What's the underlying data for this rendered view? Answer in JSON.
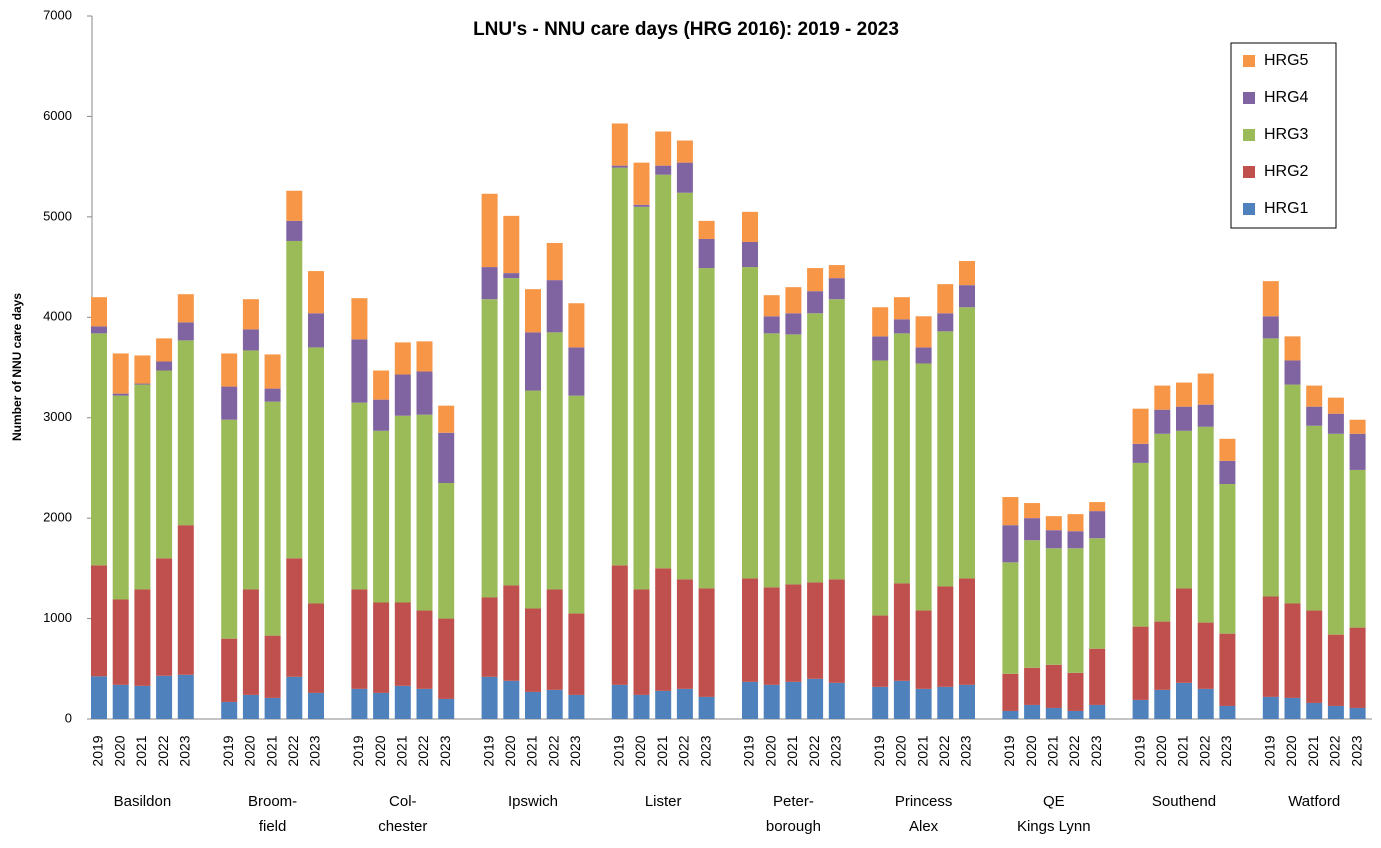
{
  "chart_data": {
    "type": "stacked_bar",
    "title": "LNU's - NNU care days (HRG 2016): 2019 - 2023",
    "y_label": "Number of NNU care days",
    "ylim": [
      0,
      7000
    ],
    "yticks": [
      0,
      1000,
      2000,
      3000,
      4000,
      5000,
      6000,
      7000
    ],
    "legend": "top-right",
    "groups": [
      [
        "Basildon"
      ],
      [
        "Broom-",
        "field"
      ],
      [
        "Col-",
        "chester"
      ],
      [
        "Ipswich"
      ],
      [
        "Lister"
      ],
      [
        "Peter-",
        "borough"
      ],
      [
        "Princess",
        "Alex"
      ],
      [
        "QE",
        "Kings Lynn"
      ],
      [
        "Southend"
      ],
      [
        "Watford"
      ]
    ],
    "categories": [
      "2019",
      "2020",
      "2021",
      "2022",
      "2023",
      "2019",
      "2020",
      "2021",
      "2022",
      "2023",
      "2019",
      "2020",
      "2021",
      "2022",
      "2023",
      "2019",
      "2020",
      "2021",
      "2022",
      "2023",
      "2019",
      "2020",
      "2021",
      "2022",
      "2023",
      "2019",
      "2020",
      "2021",
      "2022",
      "2023",
      "2019",
      "2020",
      "2021",
      "2022",
      "2023",
      "2019",
      "2020",
      "2021",
      "2022",
      "2023",
      "2019",
      "2020",
      "2021",
      "2022",
      "2023",
      "2019",
      "2020",
      "2021",
      "2022",
      "2023"
    ],
    "series": [
      {
        "name": "HRG1",
        "color": "#4f81bd",
        "values": [
          425,
          340,
          330,
          430,
          440,
          170,
          240,
          210,
          420,
          260,
          300,
          260,
          330,
          300,
          200,
          420,
          380,
          270,
          290,
          240,
          340,
          240,
          280,
          300,
          220,
          370,
          340,
          370,
          400,
          360,
          320,
          380,
          300,
          320,
          340,
          80,
          140,
          110,
          80,
          140,
          190,
          290,
          360,
          300,
          130,
          220,
          210,
          160,
          130,
          110
        ]
      },
      {
        "name": "HRG2",
        "color": "#c0504d",
        "values": [
          1105,
          850,
          960,
          1170,
          1490,
          630,
          1050,
          620,
          1180,
          890,
          990,
          900,
          830,
          780,
          800,
          790,
          950,
          830,
          1000,
          810,
          1190,
          1050,
          1220,
          1090,
          1080,
          1030,
          970,
          970,
          960,
          1030,
          710,
          970,
          780,
          1000,
          1060,
          370,
          370,
          430,
          380,
          560,
          730,
          680,
          940,
          660,
          720,
          1000,
          940,
          920,
          710,
          800
        ]
      },
      {
        "name": "HRG3",
        "color": "#9bbb59",
        "values": [
          2310,
          2030,
          2040,
          1870,
          1840,
          2180,
          2380,
          2330,
          3160,
          2550,
          1860,
          1710,
          1860,
          1950,
          1350,
          2970,
          3060,
          2170,
          2560,
          2170,
          3960,
          3810,
          3920,
          3850,
          3190,
          3100,
          2530,
          2490,
          2680,
          2790,
          2540,
          2490,
          2460,
          2540,
          2700,
          1110,
          1270,
          1160,
          1240,
          1100,
          1630,
          1870,
          1570,
          1950,
          1490,
          2570,
          2180,
          1840,
          2000,
          1570
        ]
      },
      {
        "name": "HRG4",
        "color": "#8064a2",
        "values": [
          70,
          20,
          10,
          90,
          180,
          330,
          210,
          130,
          200,
          340,
          630,
          310,
          410,
          430,
          500,
          320,
          50,
          580,
          520,
          480,
          20,
          20,
          90,
          300,
          290,
          250,
          170,
          210,
          220,
          210,
          240,
          140,
          160,
          180,
          220,
          370,
          220,
          180,
          170,
          270,
          190,
          240,
          240,
          220,
          230,
          220,
          240,
          190,
          200,
          360
        ]
      },
      {
        "name": "HRG5",
        "color": "#f79646",
        "values": [
          290,
          400,
          280,
          230,
          280,
          330,
          300,
          340,
          300,
          420,
          410,
          290,
          320,
          300,
          270,
          730,
          570,
          430,
          370,
          440,
          420,
          420,
          340,
          220,
          180,
          300,
          210,
          260,
          230,
          130,
          290,
          220,
          310,
          290,
          240,
          280,
          150,
          140,
          170,
          90,
          350,
          240,
          240,
          310,
          220,
          350,
          240,
          210,
          160,
          140
        ]
      }
    ]
  }
}
